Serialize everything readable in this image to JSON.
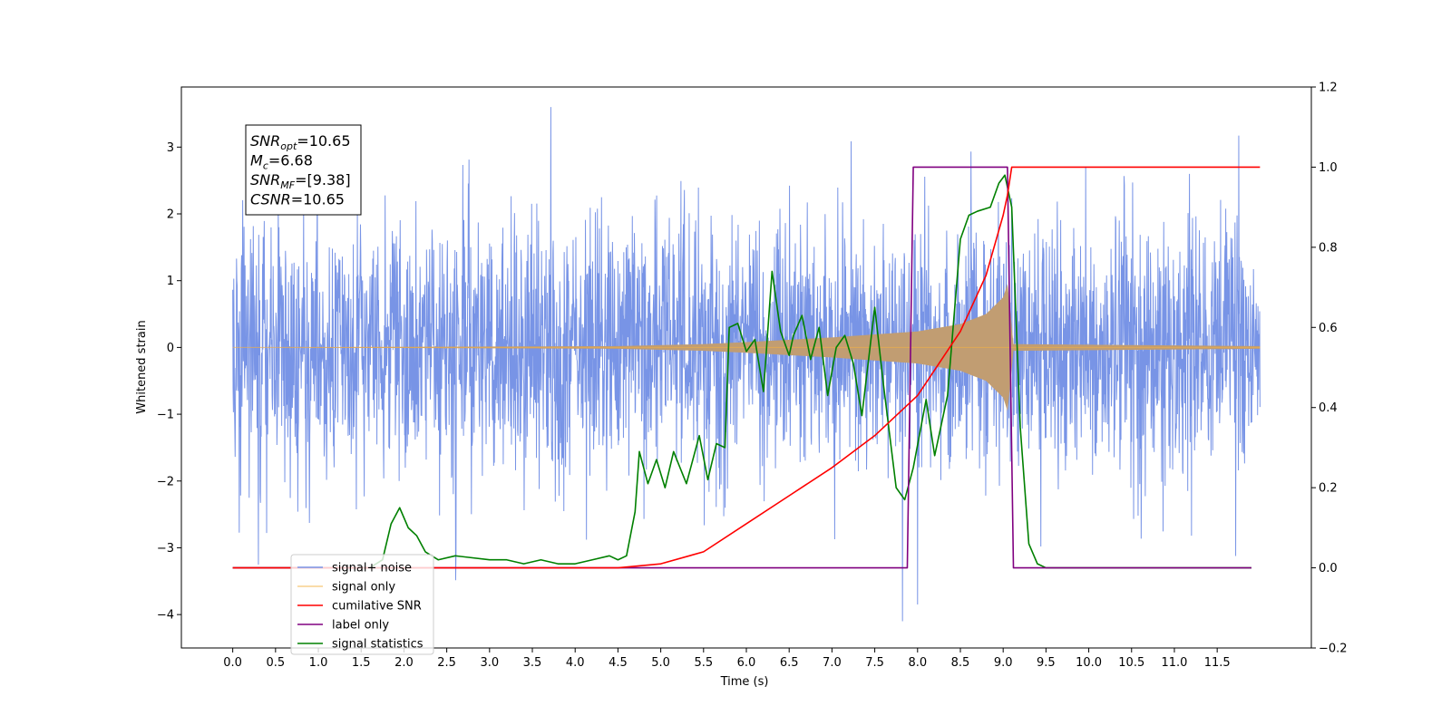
{
  "chart_data": {
    "type": "line",
    "xlabel": "Time (s)",
    "ylabel": "Whitened strain",
    "x_ticks": [
      "0.0",
      "0.5",
      "1.0",
      "1.5",
      "2.0",
      "2.5",
      "3.0",
      "3.5",
      "4.0",
      "4.5",
      "5.0",
      "5.5",
      "6.0",
      "6.5",
      "7.0",
      "7.5",
      "8.0",
      "8.5",
      "9.0",
      "9.5",
      "10.0",
      "10.5",
      "11.0",
      "11.5"
    ],
    "y_ticks_left": [
      "3",
      "2",
      "1",
      "0",
      "−1",
      "−2",
      "−3",
      "−4"
    ],
    "y_ticks_right": [
      "1.2",
      "1.0",
      "0.8",
      "0.6",
      "0.4",
      "0.2",
      "0.0",
      "−0.2"
    ],
    "xlim": [
      -0.6,
      12.6
    ],
    "ylim_left": [
      -4.5,
      3.9
    ],
    "ylim_right": [
      -0.2,
      1.2
    ],
    "grid": false,
    "legend_position": "lower-left",
    "annotation": {
      "lines": [
        {
          "base": "SNR",
          "sub": "opt",
          "rest": "=10.65"
        },
        {
          "base": "M",
          "sub": "c",
          "rest": "=6.68"
        },
        {
          "base": "SNR",
          "sub": "MF",
          "rest": "=[9.38]"
        },
        {
          "base": "CSNR",
          "sub": "",
          "rest": "=10.65"
        }
      ]
    },
    "series": [
      {
        "name": "signal+ noise",
        "axis": "left",
        "color": "#7894e6",
        "envelope": {
          "x_range": [
            0.0,
            12.0
          ],
          "typical_amplitude": 1.5,
          "peak_max": 3.6,
          "peak_min": -4.1
        }
      },
      {
        "name": "signal only",
        "axis": "left",
        "color": "#f5b041",
        "fill_color": "#c19d72",
        "chirp_envelope": [
          [
            0.0,
            0.0
          ],
          [
            4.5,
            0.02
          ],
          [
            5.5,
            0.05
          ],
          [
            6.0,
            0.08
          ],
          [
            7.0,
            0.15
          ],
          [
            8.0,
            0.24
          ],
          [
            8.5,
            0.35
          ],
          [
            8.8,
            0.5
          ],
          [
            9.0,
            0.75
          ],
          [
            9.05,
            0.95
          ],
          [
            9.08,
            0.6
          ],
          [
            9.12,
            0.05
          ],
          [
            12.0,
            0.02
          ]
        ]
      },
      {
        "name": "cumilative SNR",
        "axis": "right",
        "color": "#ff0000",
        "points": [
          [
            0.0,
            0.0
          ],
          [
            4.5,
            0.0
          ],
          [
            5.0,
            0.01
          ],
          [
            5.5,
            0.04
          ],
          [
            6.0,
            0.11
          ],
          [
            6.5,
            0.18
          ],
          [
            7.0,
            0.25
          ],
          [
            7.5,
            0.33
          ],
          [
            8.0,
            0.43
          ],
          [
            8.5,
            0.59
          ],
          [
            8.8,
            0.73
          ],
          [
            9.0,
            0.88
          ],
          [
            9.05,
            0.93
          ],
          [
            9.1,
            1.0
          ],
          [
            12.0,
            1.0
          ]
        ]
      },
      {
        "name": "label only",
        "axis": "right",
        "color": "#800080",
        "points": [
          [
            0.0,
            0.0
          ],
          [
            7.88,
            0.0
          ],
          [
            7.95,
            1.0
          ],
          [
            9.05,
            1.0
          ],
          [
            9.12,
            0.0
          ],
          [
            11.9,
            0.0
          ]
        ]
      },
      {
        "name": "signal statistics",
        "axis": "right",
        "color": "#008000",
        "points": [
          [
            0.0,
            0.0
          ],
          [
            1.0,
            0.0
          ],
          [
            1.6,
            0.0
          ],
          [
            1.75,
            0.02
          ],
          [
            1.85,
            0.11
          ],
          [
            1.95,
            0.15
          ],
          [
            2.05,
            0.1
          ],
          [
            2.15,
            0.08
          ],
          [
            2.25,
            0.04
          ],
          [
            2.4,
            0.02
          ],
          [
            2.6,
            0.03
          ],
          [
            3.0,
            0.02
          ],
          [
            3.2,
            0.02
          ],
          [
            3.4,
            0.01
          ],
          [
            3.6,
            0.02
          ],
          [
            3.8,
            0.01
          ],
          [
            4.0,
            0.01
          ],
          [
            4.2,
            0.02
          ],
          [
            4.4,
            0.03
          ],
          [
            4.5,
            0.02
          ],
          [
            4.6,
            0.03
          ],
          [
            4.7,
            0.14
          ],
          [
            4.75,
            0.29
          ],
          [
            4.85,
            0.21
          ],
          [
            4.95,
            0.27
          ],
          [
            5.05,
            0.2
          ],
          [
            5.15,
            0.29
          ],
          [
            5.3,
            0.21
          ],
          [
            5.45,
            0.33
          ],
          [
            5.55,
            0.22
          ],
          [
            5.65,
            0.31
          ],
          [
            5.75,
            0.3
          ],
          [
            5.8,
            0.6
          ],
          [
            5.9,
            0.61
          ],
          [
            6.0,
            0.54
          ],
          [
            6.1,
            0.57
          ],
          [
            6.2,
            0.44
          ],
          [
            6.3,
            0.74
          ],
          [
            6.4,
            0.59
          ],
          [
            6.5,
            0.53
          ],
          [
            6.55,
            0.58
          ],
          [
            6.65,
            0.63
          ],
          [
            6.75,
            0.52
          ],
          [
            6.85,
            0.6
          ],
          [
            6.95,
            0.43
          ],
          [
            7.05,
            0.55
          ],
          [
            7.15,
            0.58
          ],
          [
            7.25,
            0.51
          ],
          [
            7.35,
            0.38
          ],
          [
            7.5,
            0.65
          ],
          [
            7.6,
            0.46
          ],
          [
            7.75,
            0.2
          ],
          [
            7.85,
            0.17
          ],
          [
            7.95,
            0.25
          ],
          [
            8.1,
            0.42
          ],
          [
            8.2,
            0.28
          ],
          [
            8.35,
            0.43
          ],
          [
            8.5,
            0.82
          ],
          [
            8.6,
            0.88
          ],
          [
            8.7,
            0.89
          ],
          [
            8.85,
            0.9
          ],
          [
            8.95,
            0.96
          ],
          [
            9.02,
            0.98
          ],
          [
            9.1,
            0.9
          ],
          [
            9.2,
            0.35
          ],
          [
            9.3,
            0.06
          ],
          [
            9.4,
            0.01
          ],
          [
            9.5,
            0.0
          ],
          [
            11.9,
            0.0
          ]
        ]
      }
    ]
  }
}
